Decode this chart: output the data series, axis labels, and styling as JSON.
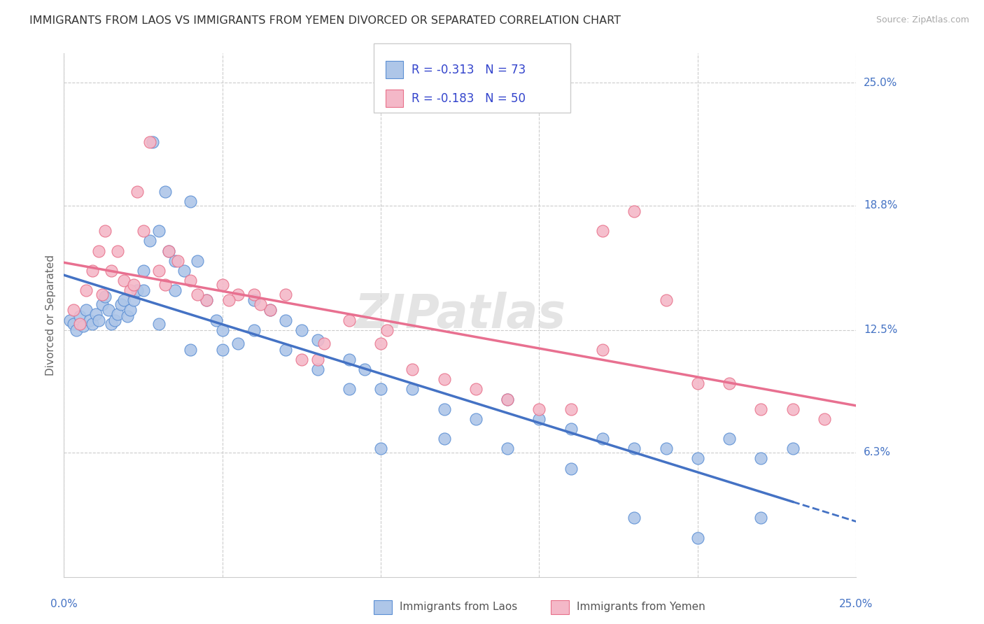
{
  "title": "IMMIGRANTS FROM LAOS VS IMMIGRANTS FROM YEMEN DIVORCED OR SEPARATED CORRELATION CHART",
  "source": "Source: ZipAtlas.com",
  "ylabel": "Divorced or Separated",
  "y_ticks_right": [
    "25.0%",
    "18.8%",
    "12.5%",
    "6.3%"
  ],
  "y_tick_vals": [
    0.25,
    0.188,
    0.125,
    0.063
  ],
  "x_tick_vals": [
    0.0,
    0.05,
    0.1,
    0.15,
    0.2,
    0.25
  ],
  "x_range": [
    0.0,
    0.25
  ],
  "y_range": [
    0.0,
    0.265
  ],
  "laos_color": "#aec6e8",
  "yemen_color": "#f4b8c8",
  "laos_edge_color": "#5b8fd4",
  "yemen_edge_color": "#e8708a",
  "laos_line_color": "#4472c4",
  "yemen_line_color": "#e87090",
  "laos_R": -0.313,
  "laos_N": 73,
  "yemen_R": -0.183,
  "yemen_N": 50,
  "watermark": "ZIPatlas",
  "laos_x": [
    0.002,
    0.003,
    0.004,
    0.005,
    0.006,
    0.007,
    0.008,
    0.009,
    0.01,
    0.011,
    0.012,
    0.013,
    0.014,
    0.015,
    0.016,
    0.017,
    0.018,
    0.019,
    0.02,
    0.021,
    0.022,
    0.023,
    0.025,
    0.027,
    0.028,
    0.03,
    0.032,
    0.033,
    0.035,
    0.038,
    0.04,
    0.042,
    0.045,
    0.048,
    0.05,
    0.055,
    0.06,
    0.065,
    0.07,
    0.075,
    0.08,
    0.09,
    0.095,
    0.1,
    0.11,
    0.12,
    0.13,
    0.14,
    0.15,
    0.16,
    0.17,
    0.18,
    0.19,
    0.2,
    0.21,
    0.22,
    0.23,
    0.025,
    0.03,
    0.035,
    0.04,
    0.05,
    0.06,
    0.07,
    0.08,
    0.09,
    0.1,
    0.12,
    0.14,
    0.16,
    0.18,
    0.2,
    0.22
  ],
  "laos_y": [
    0.13,
    0.128,
    0.125,
    0.132,
    0.127,
    0.135,
    0.13,
    0.128,
    0.133,
    0.13,
    0.138,
    0.142,
    0.135,
    0.128,
    0.13,
    0.133,
    0.138,
    0.14,
    0.132,
    0.135,
    0.14,
    0.145,
    0.155,
    0.17,
    0.22,
    0.175,
    0.195,
    0.165,
    0.16,
    0.155,
    0.19,
    0.16,
    0.14,
    0.13,
    0.125,
    0.118,
    0.14,
    0.135,
    0.13,
    0.125,
    0.12,
    0.11,
    0.105,
    0.095,
    0.095,
    0.085,
    0.08,
    0.09,
    0.08,
    0.075,
    0.07,
    0.065,
    0.065,
    0.06,
    0.07,
    0.06,
    0.065,
    0.145,
    0.128,
    0.145,
    0.115,
    0.115,
    0.125,
    0.115,
    0.105,
    0.095,
    0.065,
    0.07,
    0.065,
    0.055,
    0.03,
    0.02,
    0.03
  ],
  "yemen_x": [
    0.003,
    0.005,
    0.007,
    0.009,
    0.011,
    0.013,
    0.015,
    0.017,
    0.019,
    0.021,
    0.023,
    0.025,
    0.027,
    0.03,
    0.033,
    0.036,
    0.04,
    0.045,
    0.05,
    0.055,
    0.06,
    0.065,
    0.07,
    0.075,
    0.08,
    0.09,
    0.1,
    0.11,
    0.12,
    0.13,
    0.14,
    0.15,
    0.16,
    0.17,
    0.18,
    0.19,
    0.2,
    0.21,
    0.22,
    0.23,
    0.24,
    0.012,
    0.022,
    0.032,
    0.042,
    0.052,
    0.062,
    0.082,
    0.102,
    0.17
  ],
  "yemen_y": [
    0.135,
    0.128,
    0.145,
    0.155,
    0.165,
    0.175,
    0.155,
    0.165,
    0.15,
    0.145,
    0.195,
    0.175,
    0.22,
    0.155,
    0.165,
    0.16,
    0.15,
    0.14,
    0.148,
    0.143,
    0.143,
    0.135,
    0.143,
    0.11,
    0.11,
    0.13,
    0.118,
    0.105,
    0.1,
    0.095,
    0.09,
    0.085,
    0.085,
    0.175,
    0.185,
    0.14,
    0.098,
    0.098,
    0.085,
    0.085,
    0.08,
    0.143,
    0.148,
    0.148,
    0.143,
    0.14,
    0.138,
    0.118,
    0.125,
    0.115
  ]
}
